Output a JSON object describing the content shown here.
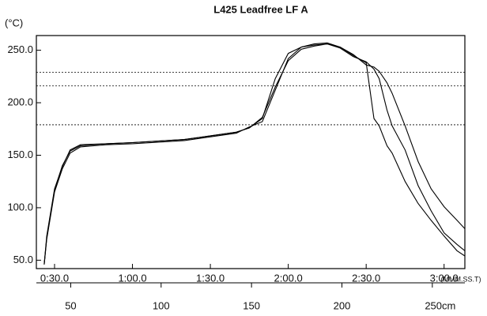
{
  "chart_data": {
    "type": "line",
    "title": "L425 Leadfree LF A",
    "y_label": "(°C)",
    "x_unit": "(MMM.SS.T)",
    "x": [
      26,
      27,
      30,
      33,
      36,
      40,
      50,
      60,
      80,
      100,
      105,
      110,
      115,
      120,
      125,
      130,
      135,
      140,
      145,
      150,
      153,
      155,
      158,
      160,
      165,
      170,
      175,
      180,
      185,
      188
    ],
    "series": [
      {
        "color": "#000000",
        "values": [
          46,
          73,
          118,
          139,
          155,
          160,
          161,
          162,
          165,
          172,
          176,
          185,
          223,
          247,
          253,
          256,
          257,
          253,
          245,
          238,
          185,
          178,
          159,
          152,
          125,
          104,
          88,
          73,
          59,
          54
        ]
      },
      {
        "color": "#000000",
        "values": [
          46,
          70,
          115,
          137,
          152,
          158,
          160,
          161,
          164,
          171,
          177,
          182,
          212,
          242,
          253,
          255,
          256,
          252,
          244,
          239,
          232,
          223,
          193,
          178,
          155,
          121,
          97,
          76,
          65,
          59
        ]
      },
      {
        "color": "#000000",
        "values": [
          46,
          71,
          117,
          140,
          154,
          159,
          161,
          162,
          165,
          172,
          176,
          186,
          215,
          240,
          251,
          254,
          256,
          253,
          246,
          236,
          234,
          230,
          219,
          209,
          178,
          144,
          118,
          101,
          88,
          80
        ]
      }
    ],
    "reference_lines": [
      229,
      216,
      179
    ],
    "xlim": [
      23,
      188
    ],
    "xticks": [
      {
        "value": 30,
        "label": "0:30.0"
      },
      {
        "value": 60,
        "label": "1:00.0"
      },
      {
        "value": 90,
        "label": "1:30.0"
      },
      {
        "value": 120,
        "label": "2:00.0"
      },
      {
        "value": 150,
        "label": "2:30.0"
      },
      {
        "value": 180,
        "label": "3:00.0"
      }
    ],
    "x2lim": [
      31,
      268
    ],
    "x2ticks": [
      50,
      100,
      150,
      200,
      {
        "value": 250,
        "label": "250cm"
      }
    ],
    "ylim": [
      42,
      264
    ],
    "yticks": [
      {
        "value": 50,
        "label": "50.0"
      },
      {
        "value": 100,
        "label": "100.0"
      },
      {
        "value": 150,
        "label": "150.0"
      },
      {
        "value": 200,
        "label": "200.0"
      },
      {
        "value": 250,
        "label": "250.0"
      }
    ]
  }
}
